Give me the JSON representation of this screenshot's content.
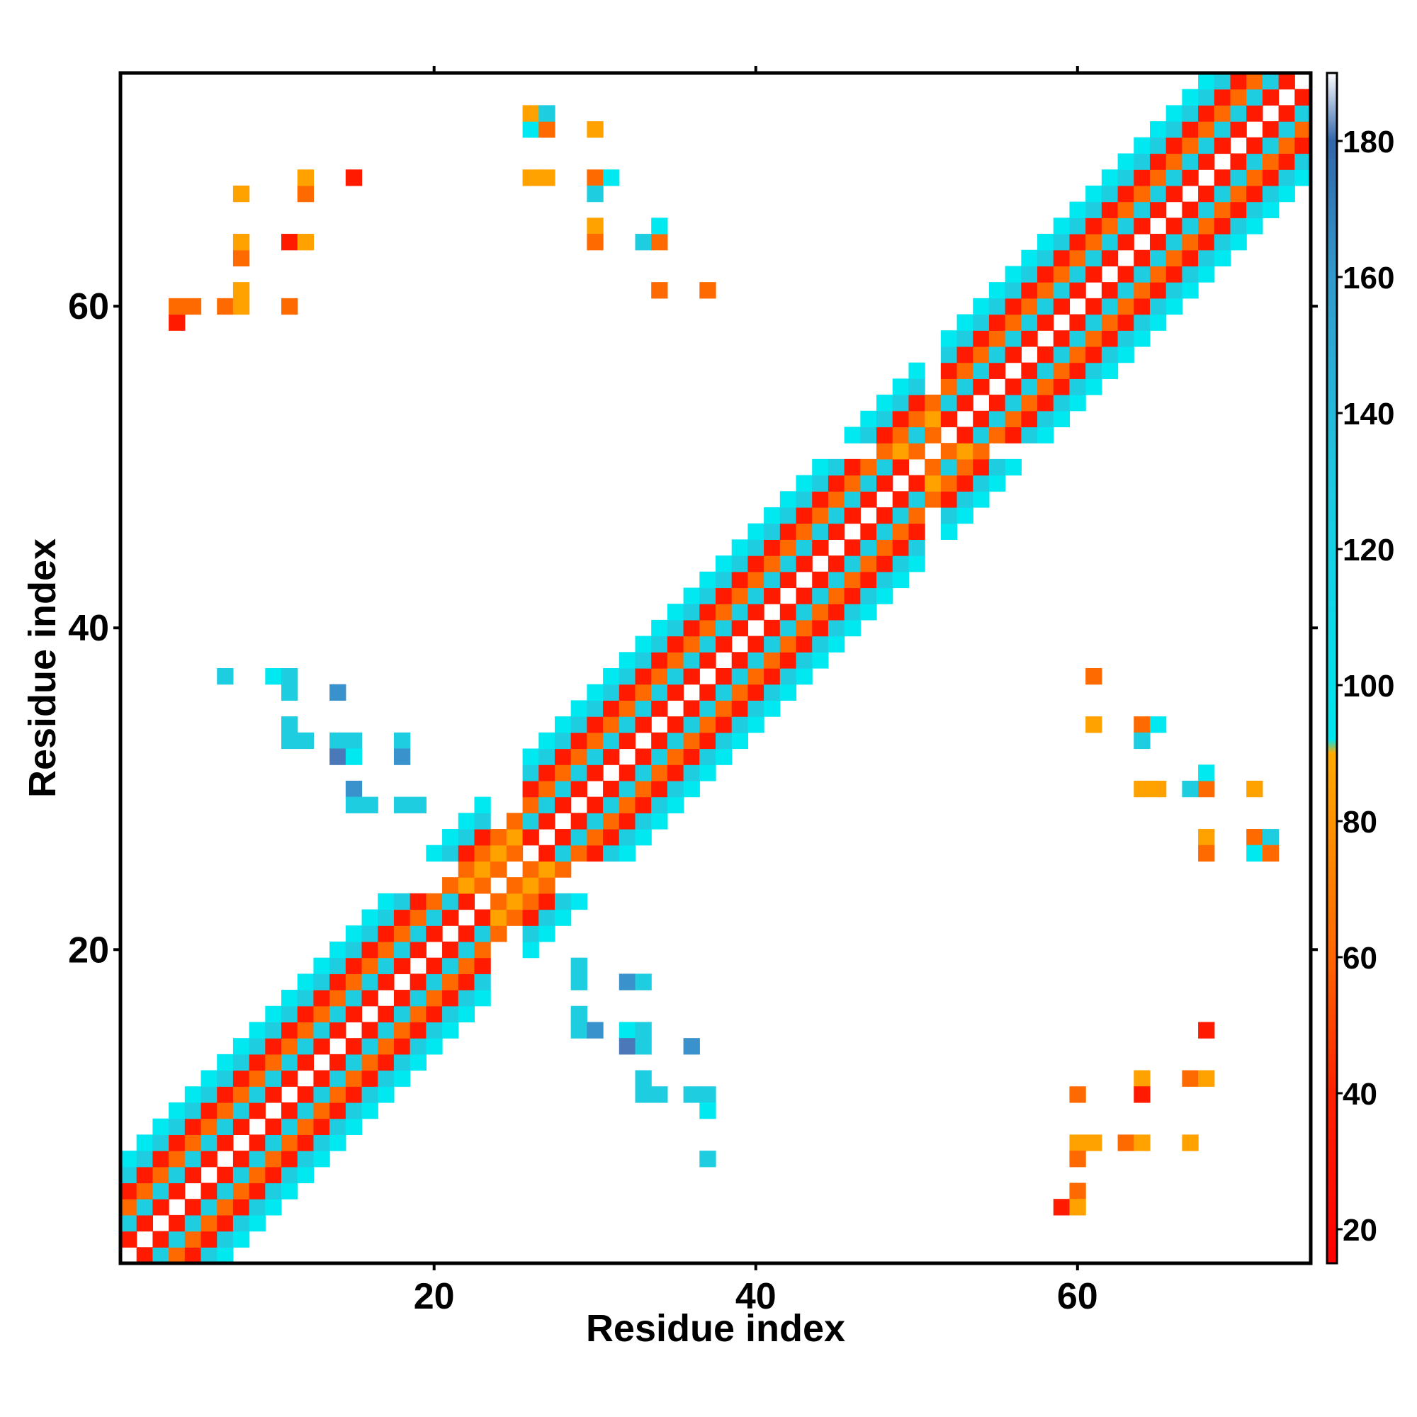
{
  "chart_data": {
    "type": "heatmap",
    "xlabel": "Residue index",
    "ylabel": "Residue index",
    "xlim": [
      0.5,
      74.5
    ],
    "ylim": [
      0.5,
      74.5
    ],
    "x_ticks": [
      20,
      40,
      60
    ],
    "y_ticks": [
      20,
      40,
      60
    ],
    "colorbar": {
      "range": [
        15,
        190
      ],
      "ticks": [
        20,
        40,
        60,
        80,
        100,
        120,
        140,
        160,
        180
      ],
      "stops": [
        {
          "value": 15,
          "color": "#ff0000"
        },
        {
          "value": 40,
          "color": "#ff2200"
        },
        {
          "value": 60,
          "color": "#ff6600"
        },
        {
          "value": 75,
          "color": "#ff8800"
        },
        {
          "value": 90,
          "color": "#ffaa00"
        },
        {
          "value": 92,
          "color": "#00e5ee"
        },
        {
          "value": 130,
          "color": "#1ec8e0"
        },
        {
          "value": 160,
          "color": "#3399cc"
        },
        {
          "value": 180,
          "color": "#3366aa"
        },
        {
          "value": 190,
          "color": "#ffffff"
        }
      ]
    },
    "colors": {
      "red": "#ff1a00",
      "orange": "#ff6a00",
      "amber": "#ffa200",
      "cyan": "#00e8f0",
      "sky": "#1ecde0",
      "blue": "#3a92cc",
      "dkblue": "#4a78b8"
    },
    "band": {
      "diag_start": 1,
      "diag_end": 74,
      "helix_ranges": [
        [
          1,
          23
        ],
        [
          26,
          50
        ],
        [
          52,
          74
        ]
      ]
    },
    "off_diagonal_cells": [
      {
        "x": 4,
        "y": 59,
        "value": 30
      },
      {
        "x": 4,
        "y": 60,
        "value": 70
      },
      {
        "x": 5,
        "y": 60,
        "value": 60
      },
      {
        "x": 7,
        "y": 60,
        "value": 65
      },
      {
        "x": 8,
        "y": 60,
        "value": 75
      },
      {
        "x": 8,
        "y": 61,
        "value": 75
      },
      {
        "x": 8,
        "y": 63,
        "value": 60
      },
      {
        "x": 8,
        "y": 64,
        "value": 80
      },
      {
        "x": 8,
        "y": 67,
        "value": 75
      },
      {
        "x": 11,
        "y": 60,
        "value": 60
      },
      {
        "x": 11,
        "y": 64,
        "value": 30
      },
      {
        "x": 12,
        "y": 64,
        "value": 80
      },
      {
        "x": 12,
        "y": 67,
        "value": 65
      },
      {
        "x": 12,
        "y": 68,
        "value": 80
      },
      {
        "x": 15,
        "y": 68,
        "value": 30
      },
      {
        "x": 26,
        "y": 68,
        "value": 75
      },
      {
        "x": 27,
        "y": 68,
        "value": 85
      },
      {
        "x": 26,
        "y": 71,
        "value": 110
      },
      {
        "x": 27,
        "y": 71,
        "value": 60
      },
      {
        "x": 26,
        "y": 72,
        "value": 80
      },
      {
        "x": 27,
        "y": 72,
        "value": 120
      },
      {
        "x": 30,
        "y": 71,
        "value": 85
      },
      {
        "x": 30,
        "y": 68,
        "value": 60
      },
      {
        "x": 31,
        "y": 68,
        "value": 110
      },
      {
        "x": 30,
        "y": 67,
        "value": 120
      },
      {
        "x": 30,
        "y": 65,
        "value": 80
      },
      {
        "x": 30,
        "y": 64,
        "value": 70
      },
      {
        "x": 33,
        "y": 64,
        "value": 120
      },
      {
        "x": 34,
        "y": 64,
        "value": 60
      },
      {
        "x": 34,
        "y": 65,
        "value": 105
      },
      {
        "x": 34,
        "y": 61,
        "value": 70
      },
      {
        "x": 37,
        "y": 61,
        "value": 60
      },
      {
        "x": 7,
        "y": 37,
        "value": 130
      },
      {
        "x": 10,
        "y": 37,
        "value": 110
      },
      {
        "x": 11,
        "y": 37,
        "value": 130
      },
      {
        "x": 11,
        "y": 36,
        "value": 130
      },
      {
        "x": 14,
        "y": 36,
        "value": 150
      },
      {
        "x": 11,
        "y": 34,
        "value": 130
      },
      {
        "x": 11,
        "y": 33,
        "value": 130
      },
      {
        "x": 12,
        "y": 33,
        "value": 130
      },
      {
        "x": 14,
        "y": 33,
        "value": 130
      },
      {
        "x": 15,
        "y": 33,
        "value": 130
      },
      {
        "x": 18,
        "y": 33,
        "value": 130
      },
      {
        "x": 14,
        "y": 32,
        "value": 170
      },
      {
        "x": 15,
        "y": 32,
        "value": 105
      },
      {
        "x": 18,
        "y": 32,
        "value": 150
      },
      {
        "x": 15,
        "y": 30,
        "value": 150
      },
      {
        "x": 15,
        "y": 29,
        "value": 130
      },
      {
        "x": 16,
        "y": 29,
        "value": 130
      },
      {
        "x": 18,
        "y": 29,
        "value": 130
      },
      {
        "x": 19,
        "y": 29,
        "value": 130
      },
      {
        "x": 29,
        "y": 19,
        "value": 130
      },
      {
        "x": 29,
        "y": 18,
        "value": 130
      },
      {
        "x": 32,
        "y": 18,
        "value": 150
      },
      {
        "x": 33,
        "y": 18,
        "value": 130
      },
      {
        "x": 29,
        "y": 16,
        "value": 130
      },
      {
        "x": 29,
        "y": 15,
        "value": 130
      },
      {
        "x": 30,
        "y": 15,
        "value": 150
      },
      {
        "x": 32,
        "y": 15,
        "value": 110
      },
      {
        "x": 33,
        "y": 15,
        "value": 130
      },
      {
        "x": 32,
        "y": 14,
        "value": 170
      },
      {
        "x": 33,
        "y": 14,
        "value": 130
      },
      {
        "x": 36,
        "y": 14,
        "value": 150
      },
      {
        "x": 33,
        "y": 12,
        "value": 130
      },
      {
        "x": 33,
        "y": 11,
        "value": 130
      },
      {
        "x": 34,
        "y": 11,
        "value": 130
      },
      {
        "x": 36,
        "y": 11,
        "value": 130
      },
      {
        "x": 37,
        "y": 11,
        "value": 130
      },
      {
        "x": 37,
        "y": 10,
        "value": 105
      },
      {
        "x": 37,
        "y": 7,
        "value": 130
      },
      {
        "x": 61,
        "y": 37,
        "value": 65
      },
      {
        "x": 61,
        "y": 34,
        "value": 75
      },
      {
        "x": 64,
        "y": 34,
        "value": 60
      },
      {
        "x": 65,
        "y": 34,
        "value": 105
      },
      {
        "x": 64,
        "y": 33,
        "value": 130
      },
      {
        "x": 64,
        "y": 30,
        "value": 75
      },
      {
        "x": 65,
        "y": 30,
        "value": 85
      },
      {
        "x": 67,
        "y": 30,
        "value": 130
      },
      {
        "x": 68,
        "y": 30,
        "value": 60
      },
      {
        "x": 68,
        "y": 31,
        "value": 110
      },
      {
        "x": 71,
        "y": 30,
        "value": 85
      },
      {
        "x": 68,
        "y": 27,
        "value": 85
      },
      {
        "x": 68,
        "y": 26,
        "value": 70
      },
      {
        "x": 71,
        "y": 27,
        "value": 60
      },
      {
        "x": 72,
        "y": 27,
        "value": 130
      },
      {
        "x": 71,
        "y": 26,
        "value": 110
      },
      {
        "x": 72,
        "y": 26,
        "value": 60
      },
      {
        "x": 68,
        "y": 15,
        "value": 30
      },
      {
        "x": 64,
        "y": 12,
        "value": 85
      },
      {
        "x": 67,
        "y": 12,
        "value": 70
      },
      {
        "x": 68,
        "y": 12,
        "value": 85
      },
      {
        "x": 64,
        "y": 11,
        "value": 30
      },
      {
        "x": 60,
        "y": 11,
        "value": 70
      },
      {
        "x": 60,
        "y": 8,
        "value": 75
      },
      {
        "x": 61,
        "y": 8,
        "value": 85
      },
      {
        "x": 63,
        "y": 8,
        "value": 60
      },
      {
        "x": 64,
        "y": 8,
        "value": 85
      },
      {
        "x": 67,
        "y": 8,
        "value": 80
      },
      {
        "x": 60,
        "y": 7,
        "value": 60
      },
      {
        "x": 60,
        "y": 5,
        "value": 70
      },
      {
        "x": 59,
        "y": 4,
        "value": 30
      },
      {
        "x": 60,
        "y": 4,
        "value": 75
      }
    ]
  }
}
